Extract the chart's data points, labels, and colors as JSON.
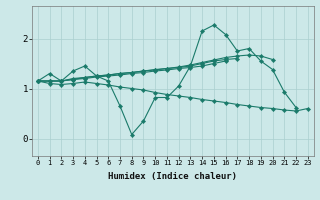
{
  "xlabel": "Humidex (Indice chaleur)",
  "x_ticks": [
    0,
    1,
    2,
    3,
    4,
    5,
    6,
    7,
    8,
    9,
    10,
    11,
    12,
    13,
    14,
    15,
    16,
    17,
    18,
    19,
    20,
    21,
    22,
    23
  ],
  "ylim": [
    -0.35,
    2.65
  ],
  "yticks": [
    0,
    1,
    2
  ],
  "bg_color": "#cce8e8",
  "grid_color": "#aacfcf",
  "line_color": "#1a7a6a",
  "lines": [
    [
      1.15,
      1.3,
      1.15,
      1.35,
      1.45,
      1.25,
      1.15,
      0.65,
      0.08,
      0.35,
      0.82,
      0.82,
      1.05,
      1.45,
      2.15,
      2.27,
      2.08,
      1.75,
      1.8,
      1.55,
      1.38,
      0.93,
      0.62,
      null
    ],
    [
      1.15,
      1.15,
      1.15,
      1.2,
      1.22,
      1.25,
      1.27,
      1.3,
      1.32,
      1.35,
      1.38,
      1.4,
      1.43,
      1.47,
      1.52,
      1.57,
      1.62,
      1.65,
      1.67,
      1.65,
      1.58,
      null,
      null,
      null
    ],
    [
      1.15,
      1.15,
      1.15,
      1.18,
      1.22,
      1.25,
      1.27,
      1.3,
      1.32,
      1.35,
      1.37,
      1.4,
      1.42,
      1.45,
      1.5,
      1.55,
      1.58,
      1.6,
      null,
      null,
      null,
      null,
      null,
      null
    ],
    [
      1.15,
      1.15,
      1.15,
      1.18,
      1.2,
      1.23,
      1.25,
      1.27,
      1.3,
      1.32,
      1.35,
      1.37,
      1.4,
      1.42,
      1.45,
      1.5,
      1.55,
      null,
      null,
      null,
      null,
      null,
      null,
      null
    ],
    [
      1.15,
      1.1,
      1.08,
      1.1,
      1.13,
      1.1,
      1.07,
      1.03,
      1.0,
      0.97,
      0.92,
      0.88,
      0.85,
      0.82,
      0.78,
      0.75,
      0.72,
      0.68,
      0.65,
      0.62,
      0.6,
      0.57,
      0.55,
      0.6
    ]
  ]
}
